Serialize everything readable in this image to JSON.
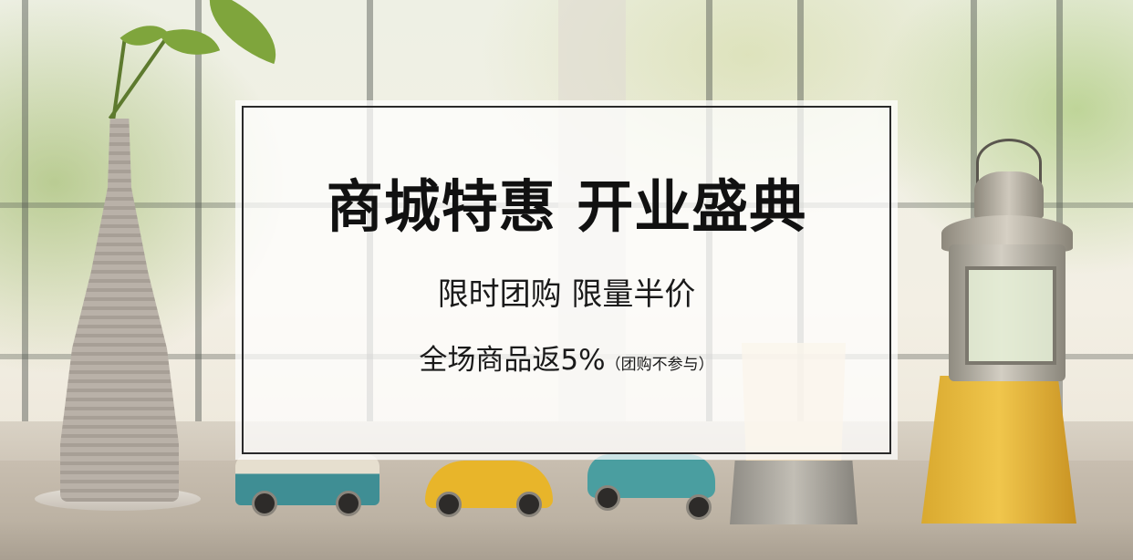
{
  "banner": {
    "headline": "商城特惠 开业盛典",
    "subheadline": "限时团购 限量半价",
    "promo_main": "全场商品返5%",
    "promo_note": "（团购不参与）"
  },
  "colors": {
    "panel_overlay": "#ffffff",
    "panel_border": "#2a2a2a",
    "text": "#111111"
  }
}
